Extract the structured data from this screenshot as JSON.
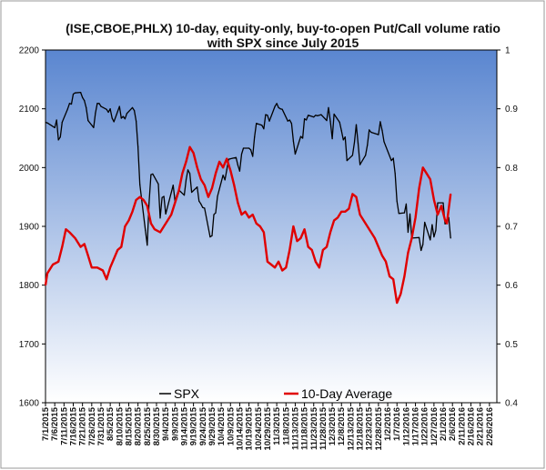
{
  "chart_data": {
    "type": "line",
    "title": "(ISE,CBOE,PHLX) 10-day, equity-only, buy-to-open Put/Call volume ratio",
    "subtitle": "with SPX since July 2015",
    "left_axis": {
      "min": 1600,
      "max": 2200,
      "ticks": [
        "1600",
        "1700",
        "1800",
        "1900",
        "2000",
        "2100",
        "2200"
      ]
    },
    "right_axis": {
      "min": 0.4,
      "max": 1.0,
      "ticks": [
        "0.4",
        "0.5",
        "0.6",
        "0.7",
        "0.8",
        "0.9",
        "1"
      ]
    },
    "x_range": [
      "2015-07-01",
      "2016-03-01"
    ],
    "x_ticks": [
      "7/1/2015",
      "7/6/2015",
      "7/11/2015",
      "7/16/2015",
      "7/21/2015",
      "7/26/2015",
      "7/31/2015",
      "8/5/2015",
      "8/10/2015",
      "8/15/2015",
      "8/20/2015",
      "8/25/2015",
      "8/30/2015",
      "9/4/2015",
      "9/9/2015",
      "9/14/2015",
      "9/19/2015",
      "9/24/2015",
      "9/29/2015",
      "10/4/2015",
      "10/9/2015",
      "10/14/2015",
      "10/19/2015",
      "10/24/2015",
      "10/29/2015",
      "11/3/2015",
      "11/8/2015",
      "11/13/2015",
      "11/18/2015",
      "11/23/2015",
      "11/28/2015",
      "12/3/2015",
      "12/8/2015",
      "12/13/2015",
      "12/18/2015",
      "12/23/2015",
      "12/28/2015",
      "1/2/2016",
      "1/7/2016",
      "1/12/2016",
      "1/17/2016",
      "1/22/2016",
      "1/27/2016",
      "2/1/2016",
      "2/6/2016",
      "2/11/2016",
      "2/16/2016",
      "2/21/2016",
      "2/26/2016"
    ],
    "legend_position": "bottom",
    "grid": false,
    "background": {
      "top": "#5a86d0",
      "bottom": "#ffffff"
    },
    "series": [
      {
        "name": "SPX",
        "axis": "left",
        "color": "#000000",
        "points": [
          [
            "2015-07-01",
            2077
          ],
          [
            "2015-07-02",
            2076
          ],
          [
            "2015-07-06",
            2068
          ],
          [
            "2015-07-07",
            2081
          ],
          [
            "2015-07-08",
            2047
          ],
          [
            "2015-07-09",
            2052
          ],
          [
            "2015-07-10",
            2077
          ],
          [
            "2015-07-13",
            2100
          ],
          [
            "2015-07-14",
            2109
          ],
          [
            "2015-07-15",
            2108
          ],
          [
            "2015-07-16",
            2125
          ],
          [
            "2015-07-17",
            2127
          ],
          [
            "2015-07-20",
            2128
          ],
          [
            "2015-07-21",
            2119
          ],
          [
            "2015-07-22",
            2114
          ],
          [
            "2015-07-23",
            2102
          ],
          [
            "2015-07-24",
            2080
          ],
          [
            "2015-07-27",
            2068
          ],
          [
            "2015-07-28",
            2093
          ],
          [
            "2015-07-29",
            2109
          ],
          [
            "2015-07-30",
            2109
          ],
          [
            "2015-07-31",
            2104
          ],
          [
            "2015-08-03",
            2099
          ],
          [
            "2015-08-04",
            2094
          ],
          [
            "2015-08-05",
            2100
          ],
          [
            "2015-08-06",
            2084
          ],
          [
            "2015-08-07",
            2078
          ],
          [
            "2015-08-10",
            2104
          ],
          [
            "2015-08-11",
            2084
          ],
          [
            "2015-08-12",
            2087
          ],
          [
            "2015-08-13",
            2083
          ],
          [
            "2015-08-14",
            2092
          ],
          [
            "2015-08-17",
            2102
          ],
          [
            "2015-08-18",
            2097
          ],
          [
            "2015-08-19",
            2079
          ],
          [
            "2015-08-20",
            2036
          ],
          [
            "2015-08-21",
            1971
          ],
          [
            "2015-08-24",
            1893
          ],
          [
            "2015-08-25",
            1868
          ],
          [
            "2015-08-26",
            1940
          ],
          [
            "2015-08-27",
            1988
          ],
          [
            "2015-08-28",
            1989
          ],
          [
            "2015-08-31",
            1972
          ],
          [
            "2015-09-01",
            1914
          ],
          [
            "2015-09-02",
            1949
          ],
          [
            "2015-09-03",
            1951
          ],
          [
            "2015-09-04",
            1921
          ],
          [
            "2015-09-08",
            1970
          ],
          [
            "2015-09-09",
            1943
          ],
          [
            "2015-09-10",
            1953
          ],
          [
            "2015-09-11",
            1962
          ],
          [
            "2015-09-14",
            1953
          ],
          [
            "2015-09-15",
            1979
          ],
          [
            "2015-09-16",
            1996
          ],
          [
            "2015-09-17",
            1990
          ],
          [
            "2015-09-18",
            1958
          ],
          [
            "2015-09-21",
            1967
          ],
          [
            "2015-09-22",
            1943
          ],
          [
            "2015-09-23",
            1938
          ],
          [
            "2015-09-24",
            1932
          ],
          [
            "2015-09-25",
            1931
          ],
          [
            "2015-09-28",
            1882
          ],
          [
            "2015-09-29",
            1884
          ],
          [
            "2015-09-30",
            1920
          ],
          [
            "2015-10-01",
            1923
          ],
          [
            "2015-10-02",
            1951
          ],
          [
            "2015-10-05",
            1987
          ],
          [
            "2015-10-06",
            1979
          ],
          [
            "2015-10-07",
            1996
          ],
          [
            "2015-10-08",
            2014
          ],
          [
            "2015-10-09",
            2015
          ],
          [
            "2015-10-12",
            2017
          ],
          [
            "2015-10-13",
            2004
          ],
          [
            "2015-10-14",
            1994
          ],
          [
            "2015-10-15",
            2023
          ],
          [
            "2015-10-16",
            2033
          ],
          [
            "2015-10-19",
            2033
          ],
          [
            "2015-10-20",
            2030
          ],
          [
            "2015-10-21",
            2019
          ],
          [
            "2015-10-22",
            2052
          ],
          [
            "2015-10-23",
            2075
          ],
          [
            "2015-10-26",
            2072
          ],
          [
            "2015-10-27",
            2066
          ],
          [
            "2015-10-28",
            2090
          ],
          [
            "2015-10-29",
            2089
          ],
          [
            "2015-10-30",
            2079
          ],
          [
            "2015-11-02",
            2104
          ],
          [
            "2015-11-03",
            2109
          ],
          [
            "2015-11-04",
            2102
          ],
          [
            "2015-11-05",
            2100
          ],
          [
            "2015-11-06",
            2099
          ],
          [
            "2015-11-09",
            2079
          ],
          [
            "2015-11-10",
            2081
          ],
          [
            "2015-11-11",
            2075
          ],
          [
            "2015-11-12",
            2045
          ],
          [
            "2015-11-13",
            2023
          ],
          [
            "2015-11-16",
            2053
          ],
          [
            "2015-11-17",
            2050
          ],
          [
            "2015-11-18",
            2083
          ],
          [
            "2015-11-19",
            2081
          ],
          [
            "2015-11-20",
            2089
          ],
          [
            "2015-11-23",
            2086
          ],
          [
            "2015-11-24",
            2089
          ],
          [
            "2015-11-25",
            2088
          ],
          [
            "2015-11-27",
            2090
          ],
          [
            "2015-11-30",
            2080
          ],
          [
            "2015-12-01",
            2102
          ],
          [
            "2015-12-02",
            2079
          ],
          [
            "2015-12-03",
            2049
          ],
          [
            "2015-12-04",
            2091
          ],
          [
            "2015-12-07",
            2077
          ],
          [
            "2015-12-08",
            2063
          ],
          [
            "2015-12-09",
            2047
          ],
          [
            "2015-12-10",
            2052
          ],
          [
            "2015-12-11",
            2012
          ],
          [
            "2015-12-14",
            2021
          ],
          [
            "2015-12-15",
            2043
          ],
          [
            "2015-12-16",
            2073
          ],
          [
            "2015-12-17",
            2041
          ],
          [
            "2015-12-18",
            2005
          ],
          [
            "2015-12-21",
            2021
          ],
          [
            "2015-12-22",
            2038
          ],
          [
            "2015-12-23",
            2064
          ],
          [
            "2015-12-24",
            2060
          ],
          [
            "2015-12-28",
            2056
          ],
          [
            "2015-12-29",
            2078
          ],
          [
            "2015-12-30",
            2063
          ],
          [
            "2015-12-31",
            2044
          ],
          [
            "2016-01-04",
            2012
          ],
          [
            "2016-01-05",
            2016
          ],
          [
            "2016-01-06",
            1990
          ],
          [
            "2016-01-07",
            1943
          ],
          [
            "2016-01-08",
            1922
          ],
          [
            "2016-01-11",
            1923
          ],
          [
            "2016-01-12",
            1938
          ],
          [
            "2016-01-13",
            1890
          ],
          [
            "2016-01-14",
            1921
          ],
          [
            "2016-01-15",
            1880
          ],
          [
            "2016-01-19",
            1881
          ],
          [
            "2016-01-20",
            1859
          ],
          [
            "2016-01-21",
            1869
          ],
          [
            "2016-01-22",
            1907
          ],
          [
            "2016-01-25",
            1877
          ],
          [
            "2016-01-26",
            1903
          ],
          [
            "2016-01-27",
            1882
          ],
          [
            "2016-01-28",
            1893
          ],
          [
            "2016-01-29",
            1940
          ],
          [
            "2016-02-01",
            1940
          ],
          [
            "2016-02-02",
            1904
          ],
          [
            "2016-02-03",
            1912
          ],
          [
            "2016-02-04",
            1915
          ],
          [
            "2016-02-05",
            1880
          ]
        ]
      },
      {
        "name": "10-Day Average",
        "axis": "right",
        "color": "#e00000",
        "points": [
          [
            "2015-07-01",
            0.6
          ],
          [
            "2015-07-02",
            0.62
          ],
          [
            "2015-07-05",
            0.635
          ],
          [
            "2015-07-08",
            0.64
          ],
          [
            "2015-07-10",
            0.665
          ],
          [
            "2015-07-12",
            0.695
          ],
          [
            "2015-07-14",
            0.69
          ],
          [
            "2015-07-17",
            0.68
          ],
          [
            "2015-07-20",
            0.665
          ],
          [
            "2015-07-22",
            0.67
          ],
          [
            "2015-07-24",
            0.65
          ],
          [
            "2015-07-26",
            0.63
          ],
          [
            "2015-07-29",
            0.63
          ],
          [
            "2015-08-01",
            0.625
          ],
          [
            "2015-08-03",
            0.61
          ],
          [
            "2015-08-05",
            0.63
          ],
          [
            "2015-08-07",
            0.645
          ],
          [
            "2015-08-09",
            0.66
          ],
          [
            "2015-08-11",
            0.665
          ],
          [
            "2015-08-13",
            0.7
          ],
          [
            "2015-08-15",
            0.71
          ],
          [
            "2015-08-17",
            0.725
          ],
          [
            "2015-08-19",
            0.745
          ],
          [
            "2015-08-21",
            0.75
          ],
          [
            "2015-08-23",
            0.745
          ],
          [
            "2015-08-25",
            0.735
          ],
          [
            "2015-08-27",
            0.705
          ],
          [
            "2015-08-29",
            0.695
          ],
          [
            "2015-09-01",
            0.69
          ],
          [
            "2015-09-03",
            0.7
          ],
          [
            "2015-09-05",
            0.71
          ],
          [
            "2015-09-07",
            0.72
          ],
          [
            "2015-09-09",
            0.74
          ],
          [
            "2015-09-11",
            0.76
          ],
          [
            "2015-09-13",
            0.79
          ],
          [
            "2015-09-15",
            0.81
          ],
          [
            "2015-09-17",
            0.835
          ],
          [
            "2015-09-19",
            0.825
          ],
          [
            "2015-09-21",
            0.8
          ],
          [
            "2015-09-23",
            0.78
          ],
          [
            "2015-09-25",
            0.77
          ],
          [
            "2015-09-27",
            0.75
          ],
          [
            "2015-09-29",
            0.765
          ],
          [
            "2015-10-01",
            0.79
          ],
          [
            "2015-10-03",
            0.81
          ],
          [
            "2015-10-05",
            0.8
          ],
          [
            "2015-10-07",
            0.815
          ],
          [
            "2015-10-09",
            0.795
          ],
          [
            "2015-10-11",
            0.77
          ],
          [
            "2015-10-13",
            0.74
          ],
          [
            "2015-10-15",
            0.72
          ],
          [
            "2015-10-17",
            0.725
          ],
          [
            "2015-10-19",
            0.715
          ],
          [
            "2015-10-21",
            0.72
          ],
          [
            "2015-10-23",
            0.705
          ],
          [
            "2015-10-25",
            0.7
          ],
          [
            "2015-10-27",
            0.69
          ],
          [
            "2015-10-29",
            0.64
          ],
          [
            "2015-10-31",
            0.635
          ],
          [
            "2015-11-02",
            0.63
          ],
          [
            "2015-11-04",
            0.64
          ],
          [
            "2015-11-06",
            0.625
          ],
          [
            "2015-11-08",
            0.63
          ],
          [
            "2015-11-10",
            0.66
          ],
          [
            "2015-11-12",
            0.7
          ],
          [
            "2015-11-14",
            0.675
          ],
          [
            "2015-11-16",
            0.68
          ],
          [
            "2015-11-18",
            0.695
          ],
          [
            "2015-11-20",
            0.665
          ],
          [
            "2015-11-22",
            0.66
          ],
          [
            "2015-11-24",
            0.64
          ],
          [
            "2015-11-26",
            0.63
          ],
          [
            "2015-11-28",
            0.66
          ],
          [
            "2015-11-30",
            0.665
          ],
          [
            "2015-12-02",
            0.69
          ],
          [
            "2015-12-04",
            0.71
          ],
          [
            "2015-12-06",
            0.715
          ],
          [
            "2015-12-08",
            0.725
          ],
          [
            "2015-12-10",
            0.725
          ],
          [
            "2015-12-12",
            0.73
          ],
          [
            "2015-12-14",
            0.755
          ],
          [
            "2015-12-16",
            0.75
          ],
          [
            "2015-12-18",
            0.72
          ],
          [
            "2015-12-20",
            0.71
          ],
          [
            "2015-12-22",
            0.7
          ],
          [
            "2015-12-24",
            0.69
          ],
          [
            "2015-12-26",
            0.68
          ],
          [
            "2015-12-28",
            0.665
          ],
          [
            "2015-12-30",
            0.65
          ],
          [
            "2016-01-01",
            0.64
          ],
          [
            "2016-01-03",
            0.615
          ],
          [
            "2016-01-05",
            0.61
          ],
          [
            "2016-01-07",
            0.57
          ],
          [
            "2016-01-09",
            0.585
          ],
          [
            "2016-01-11",
            0.615
          ],
          [
            "2016-01-13",
            0.655
          ],
          [
            "2016-01-15",
            0.68
          ],
          [
            "2016-01-17",
            0.715
          ],
          [
            "2016-01-19",
            0.765
          ],
          [
            "2016-01-21",
            0.8
          ],
          [
            "2016-01-23",
            0.79
          ],
          [
            "2016-01-25",
            0.78
          ],
          [
            "2016-01-27",
            0.745
          ],
          [
            "2016-01-29",
            0.72
          ],
          [
            "2016-01-31",
            0.735
          ],
          [
            "2016-02-02",
            0.71
          ],
          [
            "2016-02-03",
            0.705
          ],
          [
            "2016-02-04",
            0.73
          ],
          [
            "2016-02-05",
            0.755
          ]
        ]
      }
    ]
  }
}
